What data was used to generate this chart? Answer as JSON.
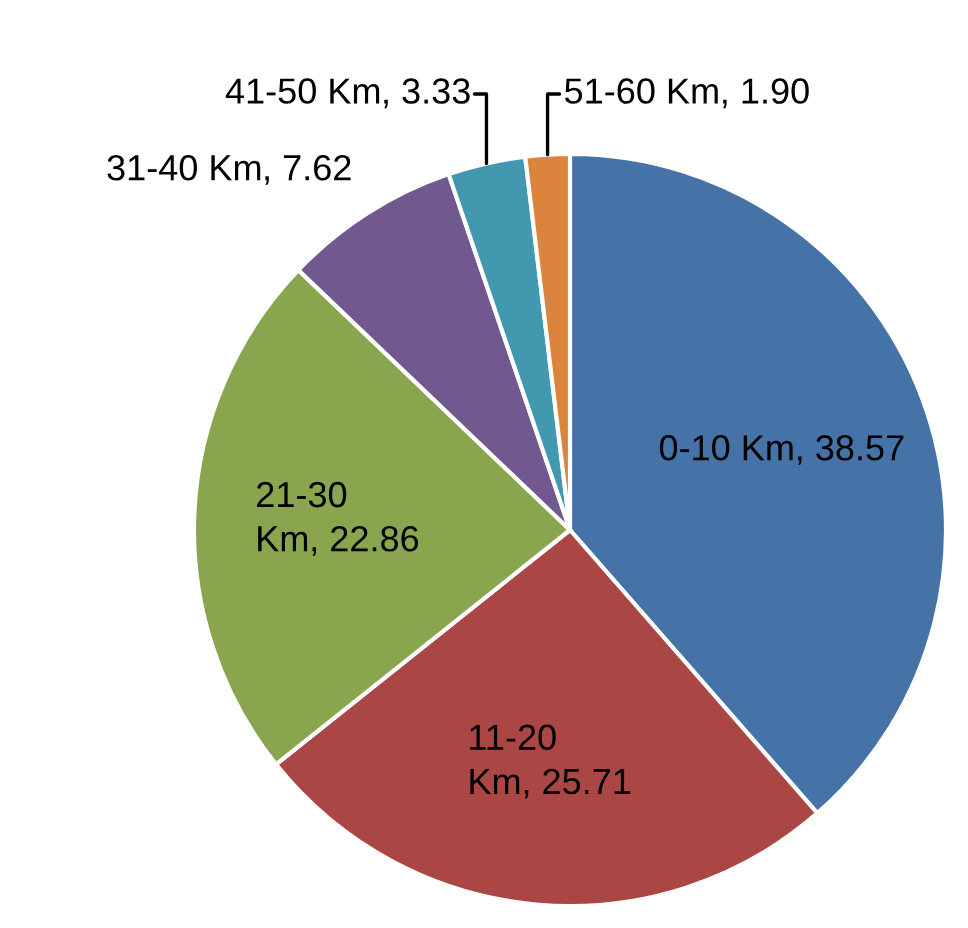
{
  "chart_data": {
    "type": "pie",
    "categories": [
      "0-10 Km",
      "11-20 Km",
      "21-30 Km",
      "31-40 Km",
      "41-50 Km",
      "51-60 Km"
    ],
    "values": [
      38.57,
      25.71,
      22.86,
      7.62,
      3.33,
      1.9
    ],
    "colors": [
      "#4572a7",
      "#aa4643",
      "#89a54e",
      "#71588f",
      "#4198af",
      "#db843d"
    ],
    "value_labels": [
      ", 38.57",
      ", 25.71",
      ", 22.86",
      ", 7.62",
      ", 3.33",
      ", 1.90"
    ]
  }
}
